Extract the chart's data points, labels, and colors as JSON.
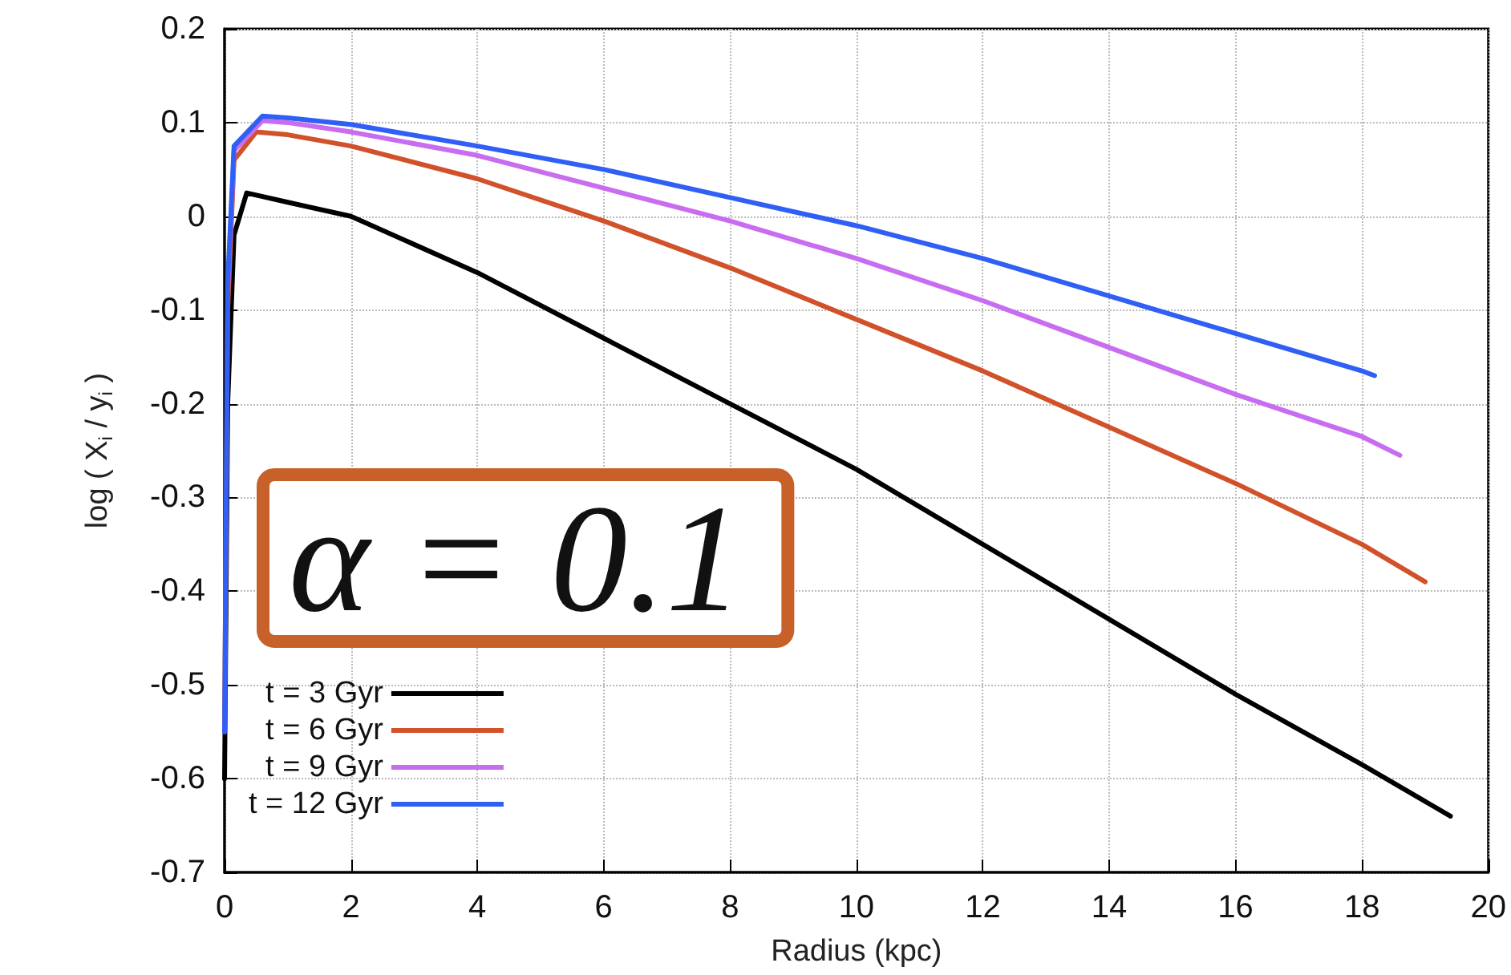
{
  "chart_data": {
    "type": "line",
    "xlabel": "Radius (kpc)",
    "ylabel": "log ( X$_{i}$ / y$_{i}$ )",
    "xlim": [
      0,
      20
    ],
    "xticks": [
      0,
      2,
      4,
      6,
      8,
      10,
      12,
      14,
      16,
      18,
      20
    ],
    "ylim": [
      -0.7,
      0.2
    ],
    "yticks": [
      -0.7,
      -0.6,
      -0.5,
      -0.4,
      -0.3,
      -0.2,
      -0.1,
      0,
      0.1,
      0.2
    ],
    "grid": true,
    "legend": "bottom left",
    "marker": "none",
    "line_style": "solid",
    "annotations": [
      "α = 0.1"
    ],
    "series": [
      {
        "name": "t = 3 Gyr",
        "color": "#000000",
        "x": [
          0,
          0.05,
          0.15,
          0.35,
          1,
          2,
          4,
          6,
          8,
          10,
          12,
          14,
          16,
          18,
          19.4
        ],
        "values": [
          -0.6,
          -0.2,
          -0.02,
          0.025,
          0.015,
          0.0,
          -0.06,
          -0.13,
          -0.2,
          -0.27,
          -0.35,
          -0.43,
          -0.51,
          -0.585,
          -0.64
        ]
      },
      {
        "name": "t = 6 Gyr",
        "color": "#d1522a",
        "x": [
          0,
          0.05,
          0.15,
          0.5,
          1,
          2,
          4,
          6,
          8,
          10,
          12,
          14,
          16,
          18,
          19
        ],
        "values": [
          -0.55,
          -0.1,
          0.06,
          0.09,
          0.087,
          0.075,
          0.04,
          -0.005,
          -0.055,
          -0.11,
          -0.165,
          -0.225,
          -0.285,
          -0.35,
          -0.39
        ]
      },
      {
        "name": "t = 9 Gyr",
        "color": "#c86cf0",
        "x": [
          0.05,
          0.15,
          0.6,
          1,
          2,
          4,
          6,
          8,
          10,
          12,
          14,
          16,
          18,
          18.6
        ],
        "values": [
          -0.08,
          0.07,
          0.102,
          0.1,
          0.09,
          0.065,
          0.03,
          -0.005,
          -0.045,
          -0.09,
          -0.14,
          -0.19,
          -0.235,
          -0.255
        ]
      },
      {
        "name": "t = 12 Gyr",
        "color": "#2f5ff5",
        "x": [
          0,
          0.05,
          0.15,
          0.6,
          1,
          2,
          4,
          6,
          8,
          10,
          12,
          14,
          16,
          18,
          18.2
        ],
        "values": [
          -0.55,
          -0.07,
          0.075,
          0.107,
          0.105,
          0.098,
          0.075,
          0.05,
          0.02,
          -0.01,
          -0.045,
          -0.085,
          -0.125,
          -0.165,
          -0.17
        ]
      }
    ]
  }
}
